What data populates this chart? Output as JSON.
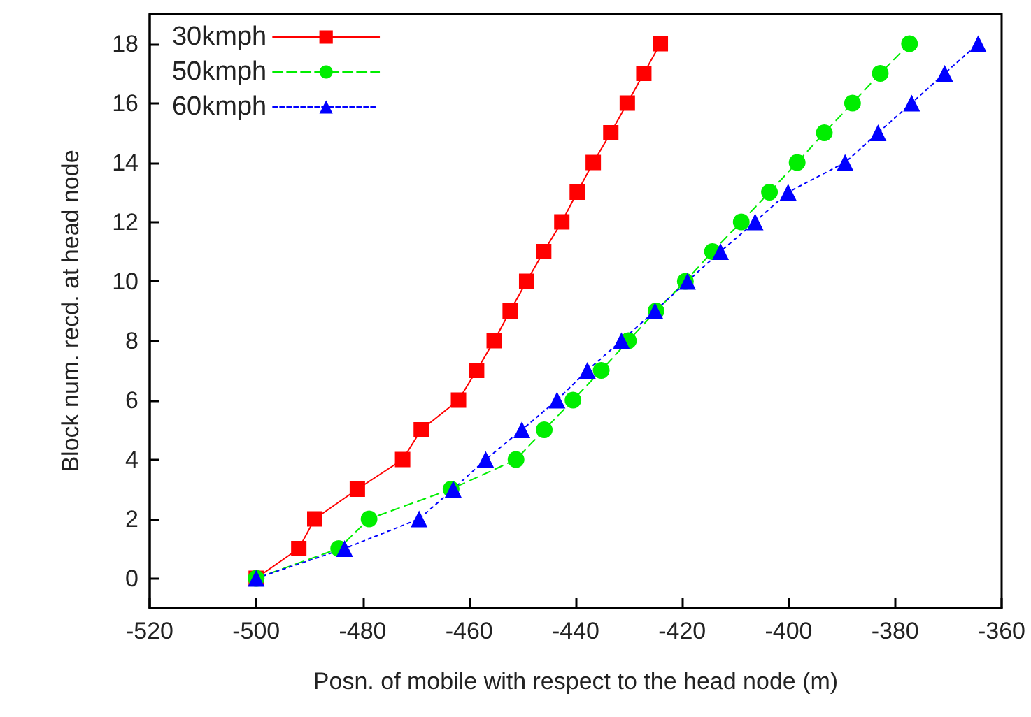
{
  "chart_data": {
    "type": "line",
    "xlabel": "Posn. of mobile with respect to the head node (m)",
    "ylabel": "Block num. recd. at head node",
    "xlim": [
      -520,
      -360
    ],
    "xticks": [
      -520,
      -500,
      -480,
      -460,
      -440,
      -420,
      -400,
      -380,
      -360
    ],
    "ylim": [
      -1,
      19
    ],
    "yticks": [
      0,
      2,
      4,
      6,
      8,
      10,
      12,
      14,
      16,
      18
    ],
    "grid": false,
    "legend": "top left",
    "series": [
      {
        "name": "30kmph",
        "color": "#ff0000",
        "marker": "square",
        "line_style": "solid",
        "x": [
          -500,
          -492,
          -489,
          -481,
          -472.5,
          -469,
          -462,
          -458.6,
          -455.3,
          -452.3,
          -449.2,
          -446,
          -442.6,
          -439.7,
          -436.7,
          -433.4,
          -430.3,
          -427.2,
          -424.1
        ],
        "values": [
          0,
          1,
          2,
          3,
          4,
          5,
          6,
          7,
          8,
          9,
          10,
          11,
          12,
          13,
          14,
          15,
          16,
          17,
          18
        ]
      },
      {
        "name": "50kmph",
        "color": "#00ee00",
        "marker": "circle",
        "line_style": "dashed",
        "x": [
          -500,
          -484.5,
          -478.8,
          -463.4,
          -451.2,
          -445.9,
          -440.5,
          -435.2,
          -430.1,
          -424.9,
          -419.4,
          -414.3,
          -408.9,
          -403.6,
          -398.4,
          -393.3,
          -388,
          -382.8,
          -377.3
        ],
        "values": [
          0,
          1,
          2,
          3,
          4,
          5,
          6,
          7,
          8,
          9,
          10,
          11,
          12,
          13,
          14,
          15,
          16,
          17,
          18
        ]
      },
      {
        "name": "60kmph",
        "color": "#0000ff",
        "marker": "triangle",
        "line_style": "dotted",
        "x": [
          -500,
          -483.4,
          -469.4,
          -463,
          -456.9,
          -450.1,
          -443.5,
          -437.8,
          -431.4,
          -425.1,
          -419,
          -412.8,
          -406.3,
          -400.1,
          -389.4,
          -383.2,
          -376.9,
          -370.7,
          -364.4
        ],
        "values": [
          0,
          1,
          2,
          3,
          4,
          5,
          6,
          7,
          8,
          9,
          10,
          11,
          12,
          13,
          14,
          15,
          16,
          17,
          18
        ]
      }
    ]
  }
}
